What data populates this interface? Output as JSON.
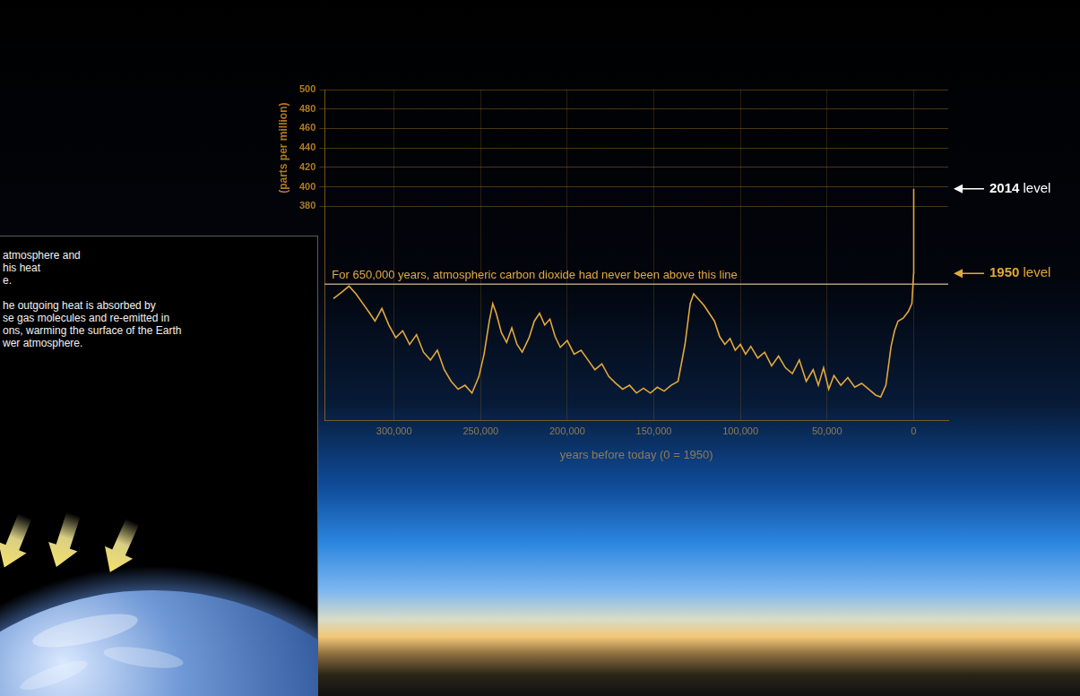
{
  "chart_data": {
    "type": "line",
    "x_label": "years before today (0 = 1950)",
    "y_label": "(parts per million)",
    "color": "#e3a83a",
    "x": [
      335000,
      330000,
      326000,
      322000,
      318000,
      314000,
      311000,
      307000,
      303000,
      299000,
      295000,
      291000,
      287000,
      283000,
      279000,
      275000,
      271000,
      267000,
      263000,
      259000,
      255000,
      251000,
      248000,
      245000,
      243000,
      241000,
      238000,
      235000,
      232000,
      229000,
      226000,
      222000,
      219000,
      216000,
      213000,
      210000,
      207000,
      204000,
      200000,
      196000,
      192000,
      188000,
      184000,
      180000,
      176000,
      172000,
      168000,
      164000,
      160000,
      156000,
      152000,
      148000,
      144000,
      140000,
      136000,
      132000,
      129000,
      127000,
      124000,
      121000,
      118000,
      115000,
      112000,
      109000,
      106000,
      103000,
      100000,
      97000,
      94000,
      90000,
      86000,
      82000,
      78000,
      74000,
      70000,
      66000,
      62000,
      58000,
      55000,
      52000,
      49000,
      46000,
      42000,
      38000,
      34000,
      30000,
      26000,
      22000,
      19000,
      16000,
      13000,
      11000,
      9000,
      6000,
      3000,
      1000,
      0,
      -64
    ],
    "values": [
      285,
      292,
      298,
      290,
      280,
      270,
      262,
      275,
      258,
      245,
      252,
      238,
      248,
      230,
      222,
      232,
      212,
      200,
      192,
      196,
      188,
      205,
      228,
      262,
      280,
      270,
      250,
      240,
      255,
      238,
      230,
      245,
      262,
      270,
      258,
      264,
      246,
      235,
      242,
      228,
      232,
      222,
      212,
      218,
      205,
      198,
      192,
      196,
      188,
      193,
      188,
      194,
      190,
      196,
      200,
      238,
      280,
      290,
      284,
      278,
      270,
      262,
      246,
      238,
      244,
      232,
      238,
      228,
      236,
      224,
      230,
      216,
      226,
      214,
      208,
      222,
      200,
      212,
      196,
      214,
      192,
      206,
      196,
      204,
      194,
      198,
      192,
      186,
      184,
      196,
      236,
      252,
      262,
      265,
      272,
      280,
      311,
      398
    ],
    "xlim": [
      340000,
      -20000
    ],
    "xticks": [
      {
        "value": 300000,
        "label": "300,000"
      },
      {
        "value": 250000,
        "label": "250,000"
      },
      {
        "value": 200000,
        "label": "200,000"
      },
      {
        "value": 150000,
        "label": "150,000"
      },
      {
        "value": 100000,
        "label": "100,000"
      },
      {
        "value": 50000,
        "label": "50,000"
      },
      0
    ],
    "ylim": [
      160,
      500
    ],
    "yticks": [
      380,
      400,
      420,
      440,
      460,
      480,
      500
    ],
    "grid": true,
    "reference_line": {
      "value": 300,
      "text": "For 650,000 years, atmospheric carbon dioxide had never been above this line"
    },
    "level_markers": [
      {
        "text": "2014 level",
        "value": 398,
        "color": "#ffffff"
      },
      {
        "text": "1950 level",
        "value": 311,
        "color": "#e3a83a"
      }
    ]
  },
  "inset_panel": {
    "paragraphs": [
      [
        "atmosphere and",
        "his heat",
        "e."
      ],
      [
        "he outgoing heat is absorbed by",
        "se gas molecules and re-emitted in",
        "ons, warming the surface of the Earth",
        "wer atmosphere."
      ]
    ]
  }
}
